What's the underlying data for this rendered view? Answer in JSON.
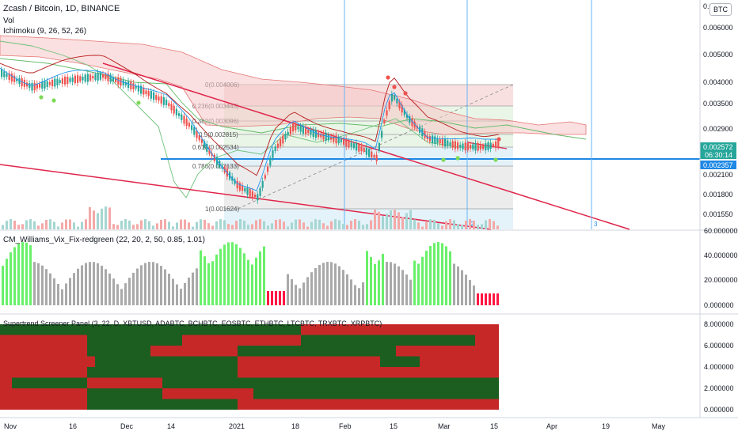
{
  "header": {
    "symbol_title": "Zcash / Bitcoin, 1D, BINANCE",
    "vol_label": "Vol",
    "ichimoku_label": "Ichimoku (9, 26, 52, 26)",
    "currency_badge": "BTC"
  },
  "price_axis": {
    "ticks": [
      "0.006000",
      "0.005000",
      "0.004000",
      "0.003500",
      "0.002900",
      "0.002100",
      "0.001800",
      "0.001550"
    ],
    "top_partial": "0.0"
  },
  "price_badges": {
    "last_price": "0.002572",
    "countdown": "06:30:14",
    "line_price": "0.002357"
  },
  "fib_labels": [
    "0(0.004006)",
    "0.236(0.003443)",
    "0.382(0.003096)",
    "0.5(0.002815)",
    "0.618(0.002534)",
    "0.786(0.002133)",
    "1(0.001624)"
  ],
  "vertical_line_labels": [
    "2",
    "3"
  ],
  "vix_panel": {
    "title": "CM_Williams_Vix_Fix-redgreen (22, 20, 2, 50, 0.85, 1.01)",
    "axis_ticks": [
      "60.000000",
      "40.000000",
      "20.000000",
      "0.000000"
    ]
  },
  "supertrend_panel": {
    "title": "Supertrend Screener Panel (3, 22, D, XBTUSD, ADABTC, BCHBTC, EOSBTC, ETHBTC, LTCBTC, TRXBTC, XRPBTC)",
    "axis_ticks": [
      "8.000000",
      "6.000000",
      "4.000000",
      "2.000000",
      "0.000000"
    ]
  },
  "time_axis": {
    "labels": [
      "Nov",
      "16",
      "Dec",
      "14",
      "2021",
      "18",
      "Feb",
      "15",
      "Mar",
      "15",
      "Apr",
      "19",
      "May"
    ]
  },
  "colors": {
    "bull_candle": "#26a69a",
    "bear_candle": "#ef5350",
    "trend_line": "#e0254a",
    "support_line": "#1e88e5",
    "supertrend_green": "#1b5e20",
    "supertrend_red": "#c62828",
    "vix_gray": "#a9a9a9",
    "vix_green": "#69f06a",
    "vix_red": "#ff1744"
  }
}
